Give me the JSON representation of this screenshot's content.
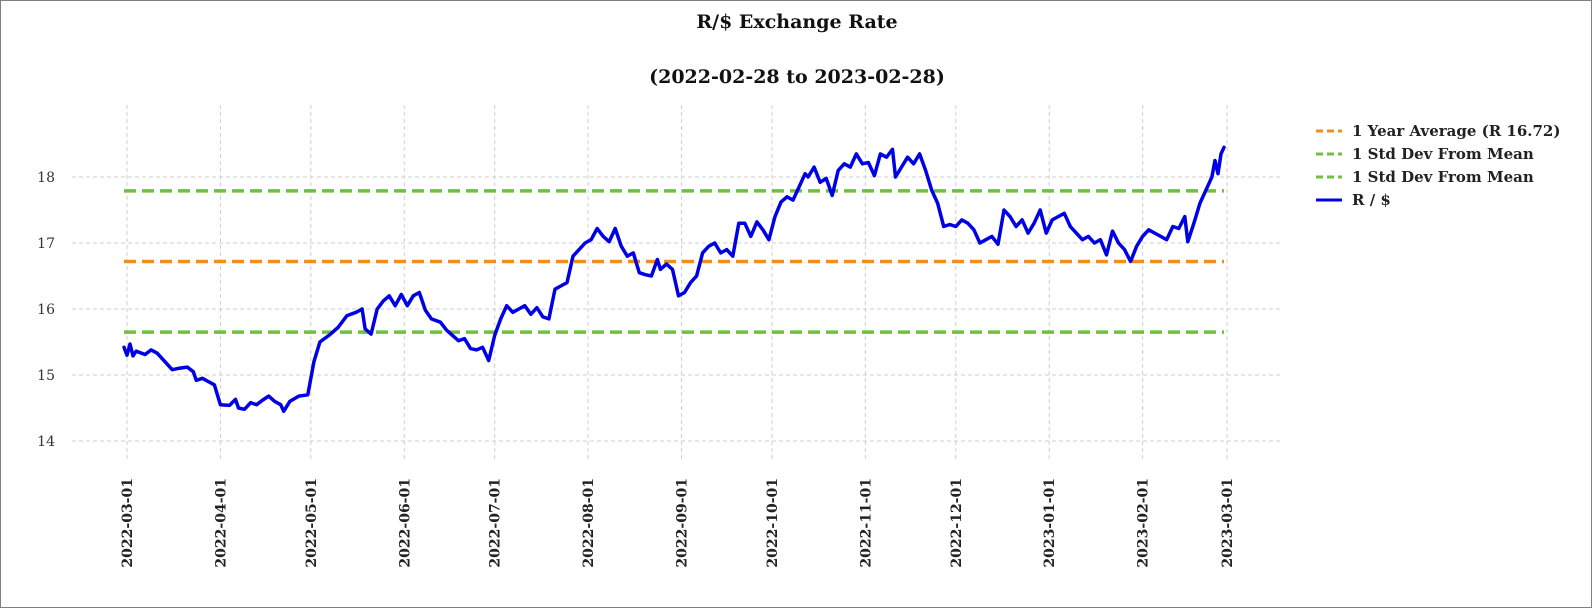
{
  "chart_data": {
    "type": "line",
    "title": "R/$  Exchange Rate",
    "subtitle": "(2022-02-28 to 2023-02-28)",
    "xlabel": "",
    "ylabel": "",
    "xlim": [
      "2022-02-28",
      "2023-02-28"
    ],
    "ylim": [
      13.4,
      19.1
    ],
    "y_ticks": [
      14,
      15,
      16,
      17,
      18
    ],
    "x_ticks": [
      "2022-03-01",
      "2022-04-01",
      "2022-05-01",
      "2022-06-01",
      "2022-07-01",
      "2022-08-01",
      "2022-09-01",
      "2022-10-01",
      "2022-11-01",
      "2022-12-01",
      "2023-01-01",
      "2023-02-01",
      "2023-03-01"
    ],
    "grid": true,
    "legend_position": "right",
    "reference_lines": [
      {
        "name": "1 Year Average (R 16.72)",
        "y": 16.72,
        "color": "#f28e1c",
        "style": "dashed"
      },
      {
        "name": "1 Std Dev From Mean",
        "y": 17.79,
        "color": "#70c040",
        "style": "dashed"
      },
      {
        "name": "1 Std Dev From Mean",
        "y": 15.65,
        "color": "#70c040",
        "style": "dashed"
      }
    ],
    "series": [
      {
        "name": "R / $",
        "color": "#0000e6",
        "points": [
          [
            "2022-02-28",
            15.42
          ],
          [
            "2022-03-01",
            15.3
          ],
          [
            "2022-03-02",
            15.47
          ],
          [
            "2022-03-03",
            15.29
          ],
          [
            "2022-03-04",
            15.36
          ],
          [
            "2022-03-07",
            15.31
          ],
          [
            "2022-03-09",
            15.38
          ],
          [
            "2022-03-11",
            15.33
          ],
          [
            "2022-03-14",
            15.18
          ],
          [
            "2022-03-16",
            15.08
          ],
          [
            "2022-03-18",
            15.1
          ],
          [
            "2022-03-21",
            15.12
          ],
          [
            "2022-03-23",
            15.05
          ],
          [
            "2022-03-24",
            14.92
          ],
          [
            "2022-03-26",
            14.95
          ],
          [
            "2022-03-28",
            14.9
          ],
          [
            "2022-03-30",
            14.85
          ],
          [
            "2022-04-01",
            14.55
          ],
          [
            "2022-04-04",
            14.54
          ],
          [
            "2022-04-06",
            14.63
          ],
          [
            "2022-04-07",
            14.5
          ],
          [
            "2022-04-09",
            14.48
          ],
          [
            "2022-04-11",
            14.58
          ],
          [
            "2022-04-13",
            14.55
          ],
          [
            "2022-04-15",
            14.62
          ],
          [
            "2022-04-17",
            14.68
          ],
          [
            "2022-04-19",
            14.6
          ],
          [
            "2022-04-21",
            14.55
          ],
          [
            "2022-04-22",
            14.45
          ],
          [
            "2022-04-24",
            14.6
          ],
          [
            "2022-04-27",
            14.68
          ],
          [
            "2022-04-30",
            14.7
          ],
          [
            "2022-05-02",
            15.2
          ],
          [
            "2022-05-04",
            15.5
          ],
          [
            "2022-05-07",
            15.6
          ],
          [
            "2022-05-10",
            15.72
          ],
          [
            "2022-05-13",
            15.9
          ],
          [
            "2022-05-16",
            15.95
          ],
          [
            "2022-05-18",
            16.0
          ],
          [
            "2022-05-19",
            15.7
          ],
          [
            "2022-05-21",
            15.62
          ],
          [
            "2022-05-23",
            16.0
          ],
          [
            "2022-05-25",
            16.12
          ],
          [
            "2022-05-27",
            16.2
          ],
          [
            "2022-05-29",
            16.05
          ],
          [
            "2022-05-31",
            16.22
          ],
          [
            "2022-06-02",
            16.05
          ],
          [
            "2022-06-04",
            16.2
          ],
          [
            "2022-06-06",
            16.25
          ],
          [
            "2022-06-08",
            15.98
          ],
          [
            "2022-06-10",
            15.85
          ],
          [
            "2022-06-13",
            15.8
          ],
          [
            "2022-06-15",
            15.68
          ],
          [
            "2022-06-17",
            15.6
          ],
          [
            "2022-06-19",
            15.52
          ],
          [
            "2022-06-21",
            15.55
          ],
          [
            "2022-06-23",
            15.4
          ],
          [
            "2022-06-25",
            15.38
          ],
          [
            "2022-06-27",
            15.42
          ],
          [
            "2022-06-29",
            15.22
          ],
          [
            "2022-07-01",
            15.6
          ],
          [
            "2022-07-03",
            15.85
          ],
          [
            "2022-07-05",
            16.05
          ],
          [
            "2022-07-07",
            15.95
          ],
          [
            "2022-07-09",
            16.0
          ],
          [
            "2022-07-11",
            16.05
          ],
          [
            "2022-07-13",
            15.92
          ],
          [
            "2022-07-15",
            16.02
          ],
          [
            "2022-07-17",
            15.88
          ],
          [
            "2022-07-19",
            15.85
          ],
          [
            "2022-07-21",
            16.3
          ],
          [
            "2022-07-23",
            16.35
          ],
          [
            "2022-07-25",
            16.4
          ],
          [
            "2022-07-27",
            16.8
          ],
          [
            "2022-07-29",
            16.9
          ],
          [
            "2022-07-31",
            17.0
          ],
          [
            "2022-08-02",
            17.05
          ],
          [
            "2022-08-04",
            17.22
          ],
          [
            "2022-08-06",
            17.1
          ],
          [
            "2022-08-08",
            17.02
          ],
          [
            "2022-08-10",
            17.22
          ],
          [
            "2022-08-12",
            16.95
          ],
          [
            "2022-08-14",
            16.8
          ],
          [
            "2022-08-16",
            16.85
          ],
          [
            "2022-08-18",
            16.55
          ],
          [
            "2022-08-20",
            16.52
          ],
          [
            "2022-08-22",
            16.5
          ],
          [
            "2022-08-24",
            16.75
          ],
          [
            "2022-08-25",
            16.6
          ],
          [
            "2022-08-27",
            16.68
          ],
          [
            "2022-08-29",
            16.6
          ],
          [
            "2022-08-31",
            16.2
          ],
          [
            "2022-09-02",
            16.25
          ],
          [
            "2022-09-04",
            16.4
          ],
          [
            "2022-09-06",
            16.5
          ],
          [
            "2022-09-08",
            16.85
          ],
          [
            "2022-09-10",
            16.95
          ],
          [
            "2022-09-12",
            17.0
          ],
          [
            "2022-09-14",
            16.85
          ],
          [
            "2022-09-16",
            16.9
          ],
          [
            "2022-09-18",
            16.8
          ],
          [
            "2022-09-20",
            17.3
          ],
          [
            "2022-09-22",
            17.3
          ],
          [
            "2022-09-24",
            17.1
          ],
          [
            "2022-09-26",
            17.32
          ],
          [
            "2022-09-28",
            17.2
          ],
          [
            "2022-09-30",
            17.05
          ],
          [
            "2022-10-02",
            17.4
          ],
          [
            "2022-10-04",
            17.62
          ],
          [
            "2022-10-06",
            17.7
          ],
          [
            "2022-10-08",
            17.65
          ],
          [
            "2022-10-10",
            17.85
          ],
          [
            "2022-10-12",
            18.05
          ],
          [
            "2022-10-13",
            18.0
          ],
          [
            "2022-10-15",
            18.15
          ],
          [
            "2022-10-17",
            17.92
          ],
          [
            "2022-10-19",
            17.98
          ],
          [
            "2022-10-21",
            17.72
          ],
          [
            "2022-10-23",
            18.1
          ],
          [
            "2022-10-25",
            18.2
          ],
          [
            "2022-10-27",
            18.15
          ],
          [
            "2022-10-29",
            18.35
          ],
          [
            "2022-10-31",
            18.2
          ],
          [
            "2022-11-02",
            18.22
          ],
          [
            "2022-11-04",
            18.02
          ],
          [
            "2022-11-06",
            18.35
          ],
          [
            "2022-11-08",
            18.3
          ],
          [
            "2022-11-10",
            18.42
          ],
          [
            "2022-11-11",
            18.0
          ],
          [
            "2022-11-13",
            18.15
          ],
          [
            "2022-11-15",
            18.3
          ],
          [
            "2022-11-17",
            18.2
          ],
          [
            "2022-11-19",
            18.35
          ],
          [
            "2022-11-21",
            18.1
          ],
          [
            "2022-11-23",
            17.8
          ],
          [
            "2022-11-25",
            17.6
          ],
          [
            "2022-11-27",
            17.25
          ],
          [
            "2022-11-29",
            17.28
          ],
          [
            "2022-12-01",
            17.25
          ],
          [
            "2022-12-03",
            17.35
          ],
          [
            "2022-12-05",
            17.3
          ],
          [
            "2022-12-07",
            17.2
          ],
          [
            "2022-12-09",
            17.0
          ],
          [
            "2022-12-11",
            17.05
          ],
          [
            "2022-12-13",
            17.1
          ],
          [
            "2022-12-15",
            16.98
          ],
          [
            "2022-12-17",
            17.5
          ],
          [
            "2022-12-19",
            17.4
          ],
          [
            "2022-12-21",
            17.25
          ],
          [
            "2022-12-23",
            17.35
          ],
          [
            "2022-12-25",
            17.15
          ],
          [
            "2022-12-27",
            17.3
          ],
          [
            "2022-12-29",
            17.5
          ],
          [
            "2022-12-31",
            17.15
          ],
          [
            "2023-01-02",
            17.35
          ],
          [
            "2023-01-04",
            17.4
          ],
          [
            "2023-01-06",
            17.45
          ],
          [
            "2023-01-08",
            17.25
          ],
          [
            "2023-01-10",
            17.15
          ],
          [
            "2023-01-12",
            17.05
          ],
          [
            "2023-01-14",
            17.1
          ],
          [
            "2023-01-16",
            17.0
          ],
          [
            "2023-01-18",
            17.05
          ],
          [
            "2023-01-20",
            16.82
          ],
          [
            "2023-01-22",
            17.18
          ],
          [
            "2023-01-24",
            17.0
          ],
          [
            "2023-01-26",
            16.9
          ],
          [
            "2023-01-28",
            16.72
          ],
          [
            "2023-01-30",
            16.95
          ],
          [
            "2023-02-01",
            17.1
          ],
          [
            "2023-02-03",
            17.2
          ],
          [
            "2023-02-05",
            17.15
          ],
          [
            "2023-02-07",
            17.1
          ],
          [
            "2023-02-09",
            17.05
          ],
          [
            "2023-02-11",
            17.25
          ],
          [
            "2023-02-13",
            17.22
          ],
          [
            "2023-02-15",
            17.4
          ],
          [
            "2023-02-16",
            17.02
          ],
          [
            "2023-02-18",
            17.3
          ],
          [
            "2023-02-20",
            17.6
          ],
          [
            "2023-02-22",
            17.8
          ],
          [
            "2023-02-24",
            18.0
          ],
          [
            "2023-02-25",
            18.25
          ],
          [
            "2023-02-26",
            18.05
          ],
          [
            "2023-02-27",
            18.35
          ],
          [
            "2023-02-28",
            18.45
          ]
        ]
      }
    ]
  }
}
